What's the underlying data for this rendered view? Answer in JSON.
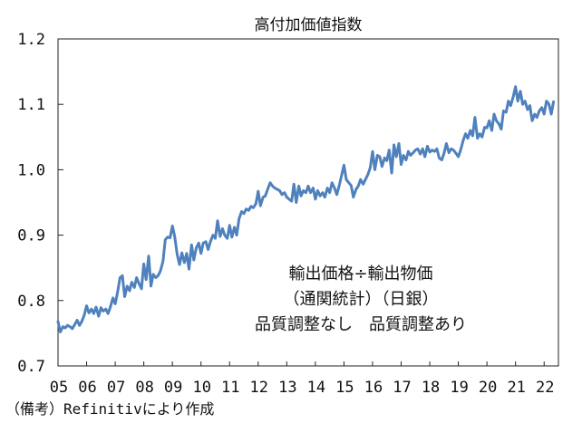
{
  "chart_data": {
    "type": "line",
    "title": "高付加価値指数",
    "xlabel": "",
    "ylabel": "",
    "ylim": [
      0.7,
      1.2
    ],
    "xlim": [
      2005,
      2022.5
    ],
    "yticks": [
      "0.7",
      "0.8",
      "0.9",
      "1.0",
      "1.1",
      "1.2"
    ],
    "xticks": [
      "05",
      "06",
      "07",
      "08",
      "09",
      "10",
      "11",
      "12",
      "13",
      "14",
      "15",
      "16",
      "17",
      "18",
      "19",
      "20",
      "21",
      "22"
    ],
    "annotation": [
      "輸出価格÷輸出物価",
      "（通関統計）（日銀）",
      "品質調整なし　品質調整あり"
    ],
    "grid": false,
    "series": [
      {
        "color": "#4f81bd",
        "x": [
          2005.0,
          2005.08,
          2005.17,
          2005.25,
          2005.33,
          2005.42,
          2005.5,
          2005.58,
          2005.67,
          2005.75,
          2005.83,
          2005.92,
          2006.0,
          2006.08,
          2006.17,
          2006.25,
          2006.33,
          2006.42,
          2006.5,
          2006.58,
          2006.67,
          2006.75,
          2006.83,
          2006.92,
          2007.0,
          2007.08,
          2007.17,
          2007.25,
          2007.33,
          2007.42,
          2007.5,
          2007.58,
          2007.67,
          2007.75,
          2007.83,
          2007.92,
          2008.0,
          2008.08,
          2008.17,
          2008.25,
          2008.33,
          2008.42,
          2008.5,
          2008.58,
          2008.67,
          2008.75,
          2008.83,
          2008.92,
          2009.0,
          2009.08,
          2009.17,
          2009.25,
          2009.33,
          2009.42,
          2009.5,
          2009.58,
          2009.67,
          2009.75,
          2009.83,
          2009.92,
          2010.0,
          2010.08,
          2010.17,
          2010.25,
          2010.33,
          2010.42,
          2010.5,
          2010.58,
          2010.67,
          2010.75,
          2010.83,
          2010.92,
          2011.0,
          2011.08,
          2011.17,
          2011.25,
          2011.33,
          2011.42,
          2011.5,
          2011.58,
          2011.67,
          2011.75,
          2011.83,
          2011.92,
          2012.0,
          2012.08,
          2012.17,
          2012.25,
          2012.33,
          2012.42,
          2012.5,
          2012.58,
          2012.67,
          2012.75,
          2012.83,
          2012.92,
          2013.0,
          2013.08,
          2013.17,
          2013.25,
          2013.33,
          2013.42,
          2013.5,
          2013.58,
          2013.67,
          2013.75,
          2013.83,
          2013.92,
          2014.0,
          2014.08,
          2014.17,
          2014.25,
          2014.33,
          2014.42,
          2014.5,
          2014.58,
          2014.67,
          2014.75,
          2014.83,
          2014.92,
          2015.0,
          2015.08,
          2015.17,
          2015.25,
          2015.33,
          2015.42,
          2015.5,
          2015.58,
          2015.67,
          2015.75,
          2015.83,
          2015.92,
          2016.0,
          2016.08,
          2016.17,
          2016.25,
          2016.33,
          2016.42,
          2016.5,
          2016.58,
          2016.67,
          2016.75,
          2016.83,
          2016.92,
          2017.0,
          2017.08,
          2017.17,
          2017.25,
          2017.33,
          2017.42,
          2017.5,
          2017.58,
          2017.67,
          2017.75,
          2017.83,
          2017.92,
          2018.0,
          2018.08,
          2018.17,
          2018.25,
          2018.33,
          2018.42,
          2018.5,
          2018.58,
          2018.67,
          2018.75,
          2018.83,
          2018.92,
          2019.0,
          2019.08,
          2019.17,
          2019.25,
          2019.33,
          2019.42,
          2019.5,
          2019.58,
          2019.67,
          2019.75,
          2019.83,
          2019.92,
          2020.0,
          2020.08,
          2020.17,
          2020.25,
          2020.33,
          2020.42,
          2020.5,
          2020.58,
          2020.67,
          2020.75,
          2020.83,
          2020.92,
          2021.0,
          2021.08,
          2021.17,
          2021.25,
          2021.33,
          2021.42,
          2021.5,
          2021.58,
          2021.67,
          2021.75,
          2021.83,
          2021.92,
          2022.0,
          2022.08,
          2022.17,
          2022.25,
          2022.33
        ],
        "values": [
          0.768,
          0.752,
          0.76,
          0.758,
          0.762,
          0.76,
          0.757,
          0.763,
          0.77,
          0.762,
          0.768,
          0.778,
          0.792,
          0.781,
          0.787,
          0.78,
          0.79,
          0.776,
          0.789,
          0.784,
          0.787,
          0.78,
          0.79,
          0.804,
          0.795,
          0.812,
          0.835,
          0.838,
          0.806,
          0.822,
          0.815,
          0.828,
          0.82,
          0.835,
          0.826,
          0.818,
          0.856,
          0.832,
          0.868,
          0.822,
          0.84,
          0.835,
          0.838,
          0.845,
          0.86,
          0.893,
          0.897,
          0.896,
          0.914,
          0.898,
          0.87,
          0.855,
          0.873,
          0.858,
          0.872,
          0.848,
          0.885,
          0.862,
          0.88,
          0.888,
          0.872,
          0.888,
          0.89,
          0.878,
          0.89,
          0.9,
          0.895,
          0.922,
          0.898,
          0.91,
          0.9,
          0.895,
          0.915,
          0.897,
          0.912,
          0.9,
          0.925,
          0.936,
          0.933,
          0.94,
          0.938,
          0.944,
          0.942,
          0.948,
          0.967,
          0.945,
          0.958,
          0.96,
          0.97,
          0.98,
          0.975,
          0.972,
          0.97,
          0.968,
          0.962,
          0.965,
          0.958,
          0.955,
          0.952,
          0.978,
          0.95,
          0.975,
          0.96,
          0.968,
          0.965,
          0.975,
          0.965,
          0.972,
          0.955,
          0.968,
          0.96,
          0.965,
          0.958,
          0.972,
          0.965,
          0.98,
          0.972,
          0.962,
          0.975,
          0.992,
          1.007,
          0.985,
          0.98,
          0.976,
          0.958,
          0.97,
          0.975,
          0.985,
          0.978,
          0.985,
          0.992,
          1.003,
          1.028,
          1.0,
          1.022,
          1.02,
          1.005,
          1.018,
          1.014,
          1.03,
          0.995,
          1.038,
          1.02,
          1.04,
          1.008,
          1.022,
          1.015,
          1.028,
          1.022,
          1.026,
          1.03,
          1.032,
          1.024,
          1.032,
          1.02,
          1.036,
          1.027,
          1.03,
          1.028,
          1.032,
          1.018,
          1.015,
          1.025,
          1.04,
          1.026,
          1.032,
          1.03,
          1.025,
          1.02,
          1.03,
          1.045,
          1.055,
          1.048,
          1.06,
          1.052,
          1.08,
          1.048,
          1.055,
          1.05,
          1.065,
          1.064,
          1.075,
          1.06,
          1.085,
          1.075,
          1.07,
          1.062,
          1.09,
          1.088,
          1.105,
          1.098,
          1.112,
          1.127,
          1.105,
          1.12,
          1.1,
          1.105,
          1.092,
          1.098,
          1.075,
          1.085,
          1.08,
          1.09,
          1.095,
          1.085,
          1.105,
          1.1,
          1.085,
          1.104
        ]
      }
    ]
  },
  "footnote": "（備考）Refinitivにより作成"
}
